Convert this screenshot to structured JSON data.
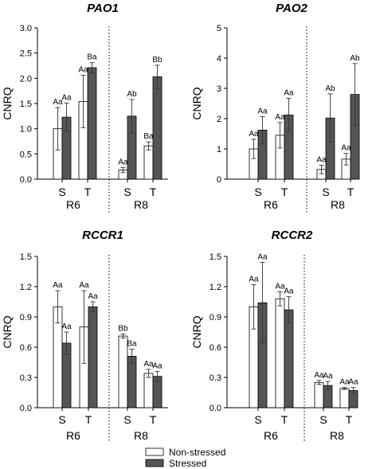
{
  "legend": [
    {
      "label": "Non-stressed",
      "color": "#ffffff"
    },
    {
      "label": "Stressed",
      "color": "#555555"
    }
  ],
  "chart_data": [
    {
      "type": "bar",
      "title": "PAO1",
      "ylabel": "CNRQ",
      "ylim": [
        0,
        3.0
      ],
      "yticks": [
        "0.0",
        "0.5",
        "1.0",
        "1.5",
        "2.0",
        "2.5",
        "3.0"
      ],
      "categories": [
        "S",
        "T",
        "S",
        "T"
      ],
      "groups": [
        "R6",
        "R8"
      ],
      "series": [
        {
          "name": "Non-stressed",
          "values": [
            1.0,
            1.54,
            0.18,
            0.66
          ],
          "errors": [
            0.42,
            0.52,
            0.05,
            0.08
          ],
          "labels": [
            "Aa",
            "Aa",
            "Aa",
            "Ba"
          ]
        },
        {
          "name": "Stressed",
          "values": [
            1.23,
            2.21,
            1.25,
            2.03
          ],
          "errors": [
            0.28,
            0.1,
            0.33,
            0.23
          ],
          "labels": [
            "Aa",
            "Ba",
            "Ab",
            "Bb"
          ]
        }
      ]
    },
    {
      "type": "bar",
      "title": "PAO2",
      "ylabel": "CNRQ",
      "ylim": [
        0,
        5
      ],
      "yticks": [
        "0",
        "1",
        "2",
        "3",
        "4",
        "5"
      ],
      "categories": [
        "S",
        "T",
        "S",
        "T"
      ],
      "groups": [
        "R6",
        "R8"
      ],
      "series": [
        {
          "name": "Non-stressed",
          "values": [
            1.0,
            1.45,
            0.32,
            0.66
          ],
          "errors": [
            0.32,
            0.42,
            0.14,
            0.19
          ],
          "labels": [
            "Aa",
            "Aa",
            "Aa",
            "Aa"
          ]
        },
        {
          "name": "Stressed",
          "values": [
            1.62,
            2.12,
            2.02,
            2.8
          ],
          "errors": [
            0.45,
            0.55,
            0.8,
            1.02
          ],
          "labels": [
            "Aa",
            "Aa",
            "Ab",
            "Ab"
          ]
        }
      ]
    },
    {
      "type": "bar",
      "title": "RCCR1",
      "ylabel": "CNRQ",
      "ylim": [
        0,
        1.5
      ],
      "yticks": [
        "0.0",
        "0.3",
        "0.6",
        "0.9",
        "1.2",
        "1.5"
      ],
      "categories": [
        "S",
        "T",
        "S",
        "T"
      ],
      "groups": [
        "R6",
        "R8"
      ],
      "series": [
        {
          "name": "Non-stressed",
          "values": [
            1.0,
            0.8,
            0.71,
            0.34
          ],
          "errors": [
            0.16,
            0.36,
            0.02,
            0.04
          ],
          "labels": [
            "Aa",
            "Aa",
            "Bb",
            "Aa"
          ]
        },
        {
          "name": "Stressed",
          "values": [
            0.64,
            1.0,
            0.51,
            0.31
          ],
          "errors": [
            0.11,
            0.05,
            0.07,
            0.05
          ],
          "labels": [
            "Aa",
            "Aa",
            "Ba",
            "Aa"
          ]
        }
      ]
    },
    {
      "type": "bar",
      "title": "RCCR2",
      "ylabel": "CNRQ",
      "ylim": [
        0,
        1.5
      ],
      "yticks": [
        "0.0",
        "0.3",
        "0.6",
        "0.9",
        "1.2",
        "1.5"
      ],
      "categories": [
        "S",
        "T",
        "S",
        "T"
      ],
      "groups": [
        "R6",
        "R8"
      ],
      "series": [
        {
          "name": "Non-stressed",
          "values": [
            1.0,
            1.08,
            0.25,
            0.19
          ],
          "errors": [
            0.22,
            0.07,
            0.02,
            0.01
          ],
          "labels": [
            "Aa",
            "Aa",
            "Aa",
            "Aa"
          ]
        },
        {
          "name": "Stressed",
          "values": [
            1.04,
            0.97,
            0.22,
            0.17
          ],
          "errors": [
            0.4,
            0.13,
            0.04,
            0.03
          ],
          "labels": [
            "Aa",
            "Aa",
            "Aa",
            "Aa"
          ]
        }
      ]
    }
  ]
}
